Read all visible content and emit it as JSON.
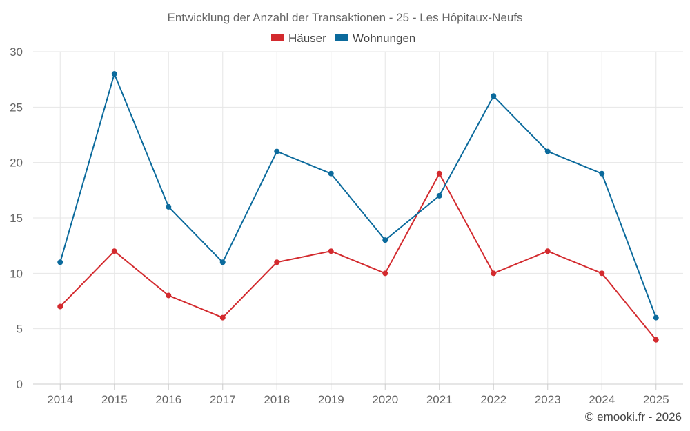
{
  "chart_data": {
    "type": "line",
    "title": "Entwicklung der Anzahl der Transaktionen - 25 - Les Hôpitaux-Neufs",
    "categories": [
      "2014",
      "2015",
      "2016",
      "2017",
      "2018",
      "2019",
      "2020",
      "2021",
      "2022",
      "2023",
      "2024",
      "2025"
    ],
    "series": [
      {
        "name": "Häuser",
        "color": "#d32a2e",
        "values": [
          7,
          12,
          8,
          6,
          11,
          12,
          10,
          19,
          10,
          12,
          10,
          4
        ]
      },
      {
        "name": "Wohnungen",
        "color": "#0b6a9c",
        "values": [
          11,
          28,
          16,
          11,
          21,
          19,
          13,
          17,
          26,
          21,
          19,
          6
        ]
      }
    ],
    "ylim": [
      0,
      30
    ],
    "yticks": [
      0,
      5,
      10,
      15,
      20,
      25,
      30
    ],
    "grid": true,
    "legend_position": "top-center",
    "xlabel": "",
    "ylabel": ""
  },
  "credit": "© emooki.fr - 2026"
}
